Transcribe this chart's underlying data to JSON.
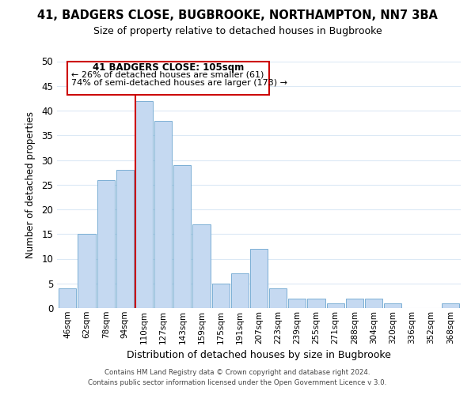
{
  "title1": "41, BADGERS CLOSE, BUGBROOKE, NORTHAMPTON, NN7 3BA",
  "title2": "Size of property relative to detached houses in Bugbrooke",
  "xlabel": "Distribution of detached houses by size in Bugbrooke",
  "ylabel": "Number of detached properties",
  "bar_labels": [
    "46sqm",
    "62sqm",
    "78sqm",
    "94sqm",
    "110sqm",
    "127sqm",
    "143sqm",
    "159sqm",
    "175sqm",
    "191sqm",
    "207sqm",
    "223sqm",
    "239sqm",
    "255sqm",
    "271sqm",
    "288sqm",
    "304sqm",
    "320sqm",
    "336sqm",
    "352sqm",
    "368sqm"
  ],
  "bar_values": [
    4,
    15,
    26,
    28,
    42,
    38,
    29,
    17,
    5,
    7,
    12,
    4,
    2,
    2,
    1,
    2,
    2,
    1,
    0,
    0,
    1
  ],
  "bar_color": "#c5d9f1",
  "bar_edge_color": "#7bafd4",
  "highlight_bar_index": 4,
  "highlight_line_color": "#cc0000",
  "ylim": [
    0,
    50
  ],
  "yticks": [
    0,
    5,
    10,
    15,
    20,
    25,
    30,
    35,
    40,
    45,
    50
  ],
  "annotation_title": "41 BADGERS CLOSE: 105sqm",
  "annotation_line1": "← 26% of detached houses are smaller (61)",
  "annotation_line2": "74% of semi-detached houses are larger (173) →",
  "annotation_box_edge": "#cc0000",
  "footer1": "Contains HM Land Registry data © Crown copyright and database right 2024.",
  "footer2": "Contains public sector information licensed under the Open Government Licence v 3.0.",
  "bg_color": "#ffffff",
  "grid_color": "#dce9f5"
}
